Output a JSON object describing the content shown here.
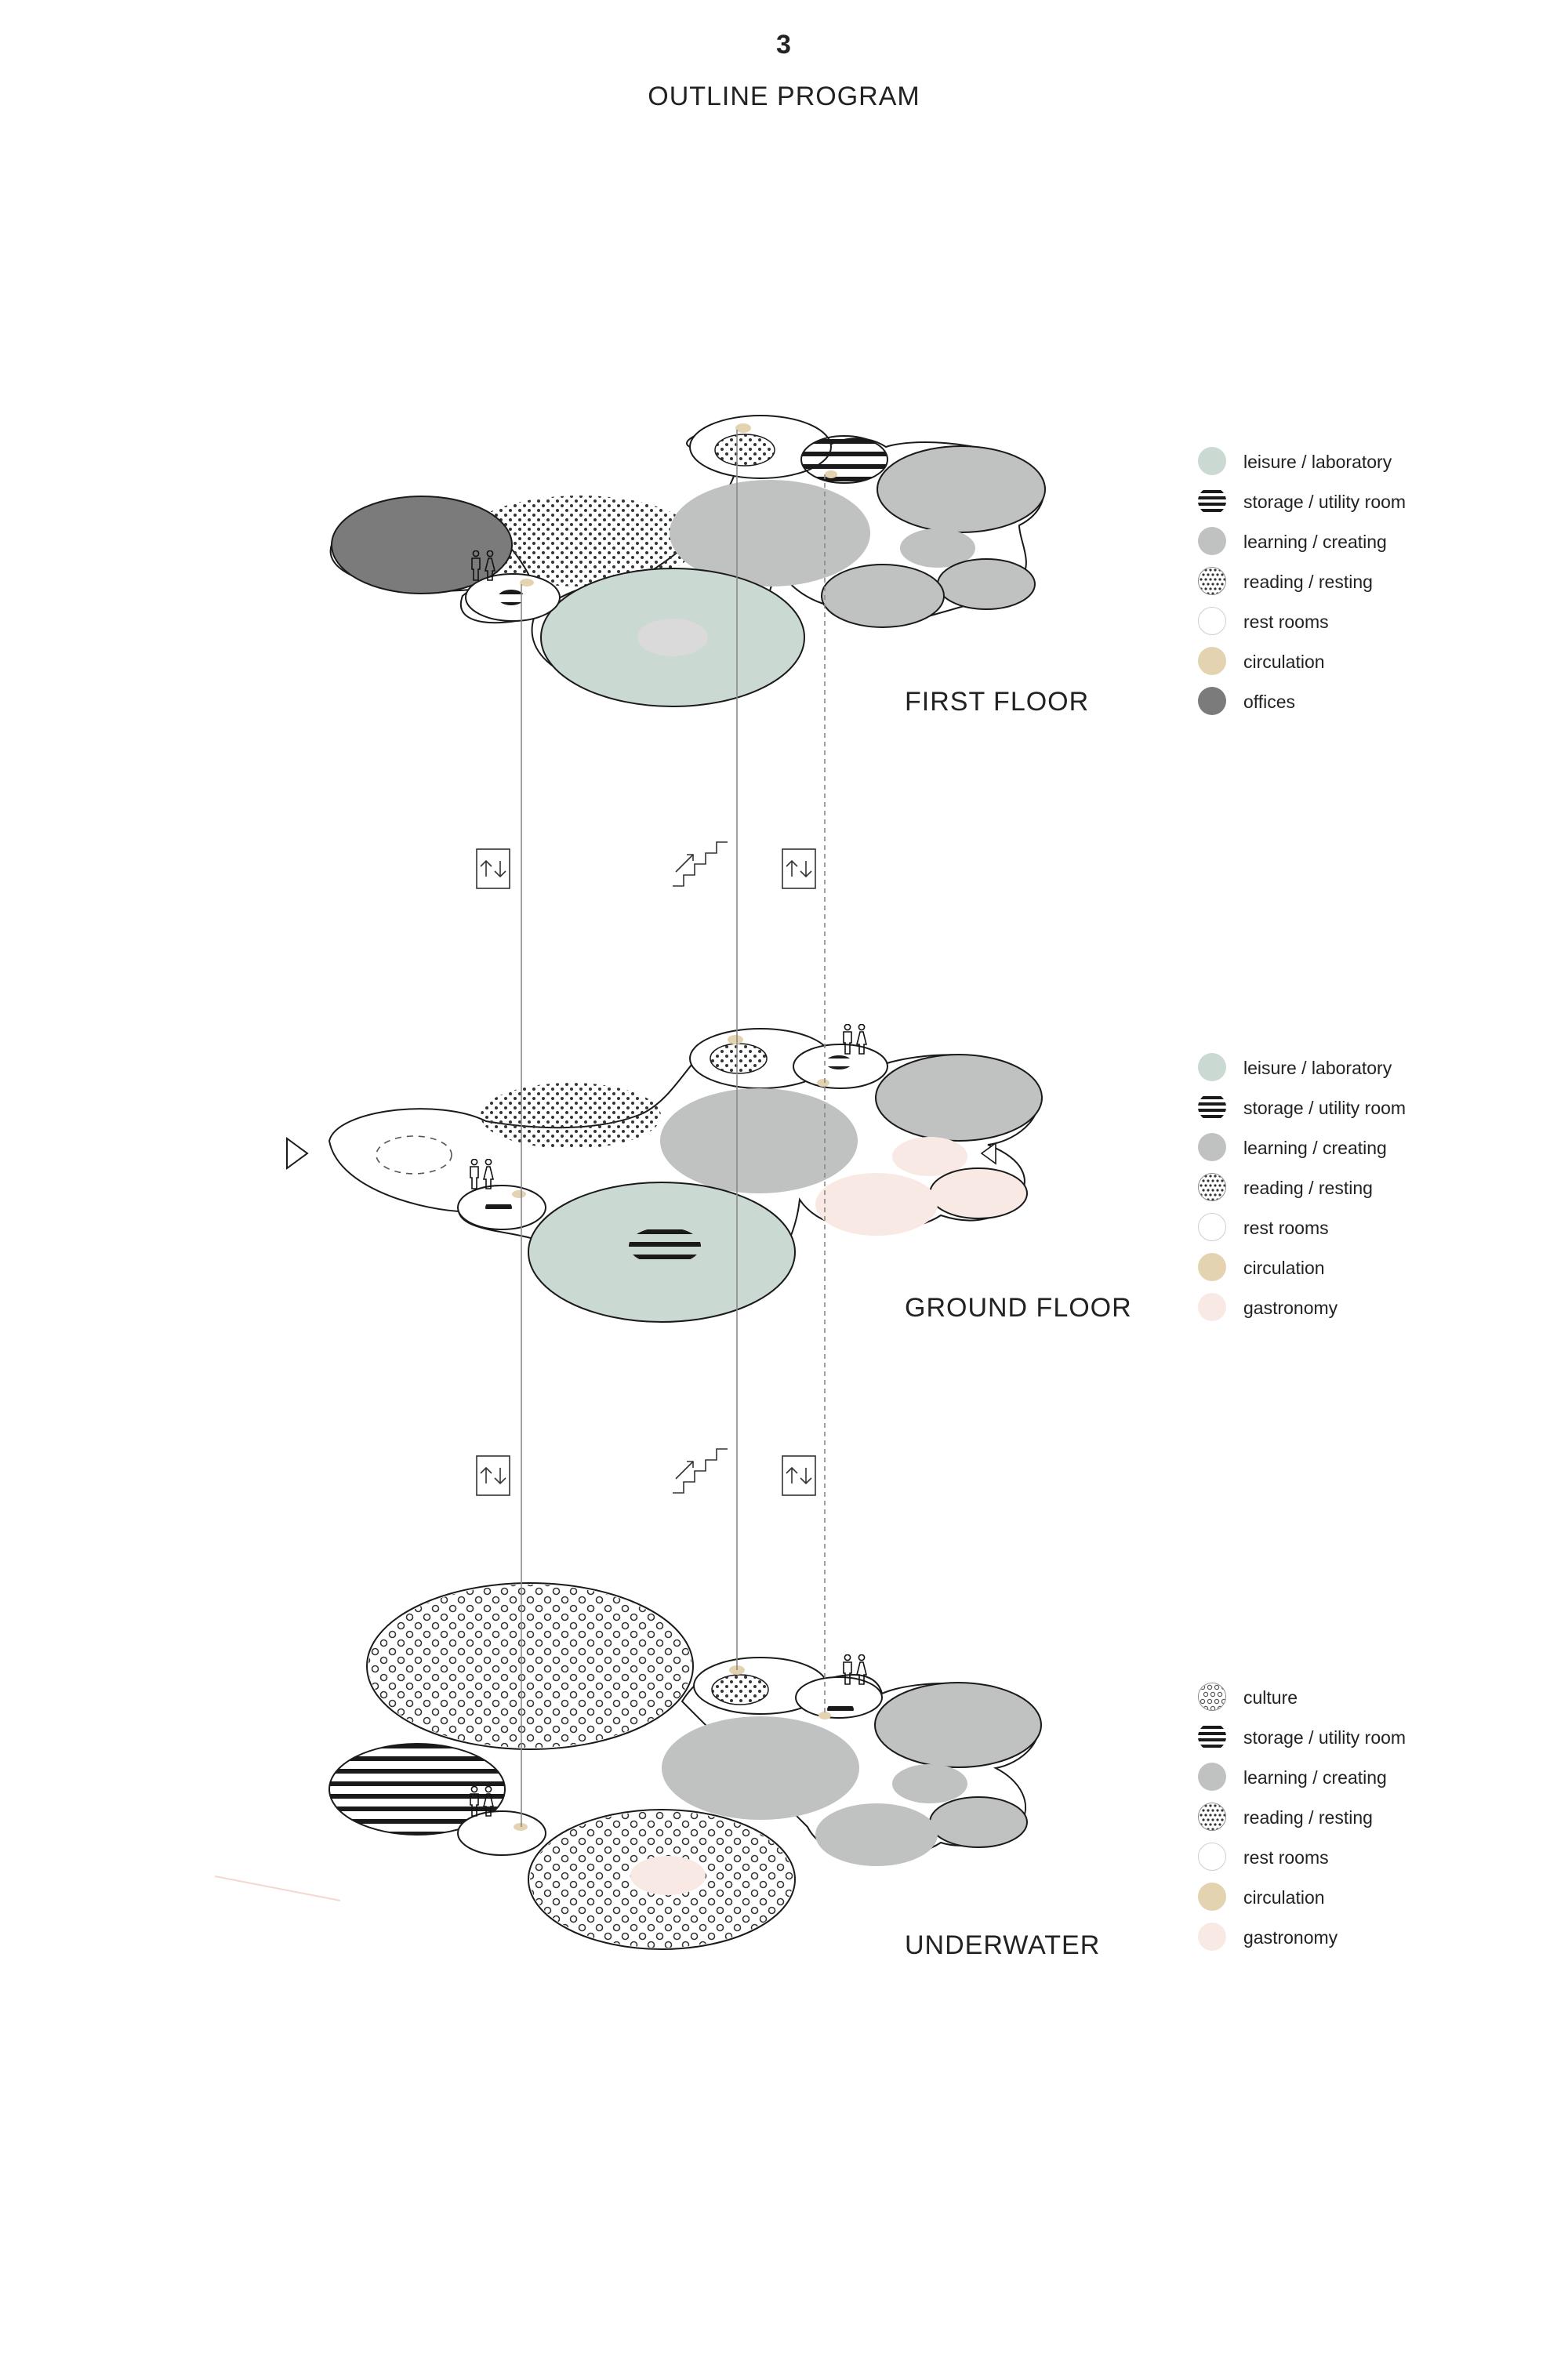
{
  "page_number": "3",
  "title": "OUTLINE PROGRAM",
  "floors": [
    {
      "label": "FIRST FLOOR",
      "legend": [
        {
          "label": "leisure / laboratory",
          "swatch": "leisure"
        },
        {
          "label": "storage / utility room",
          "swatch": "storage"
        },
        {
          "label": "learning / creating",
          "swatch": "learning"
        },
        {
          "label": "reading / resting",
          "swatch": "reading"
        },
        {
          "label": "rest rooms",
          "swatch": "rest"
        },
        {
          "label": "circulation",
          "swatch": "circulation"
        },
        {
          "label": "offices",
          "swatch": "offices"
        }
      ]
    },
    {
      "label": "GROUND FLOOR",
      "legend": [
        {
          "label": "leisure / laboratory",
          "swatch": "leisure"
        },
        {
          "label": "storage / utility room",
          "swatch": "storage"
        },
        {
          "label": "learning / creating",
          "swatch": "learning"
        },
        {
          "label": "reading / resting",
          "swatch": "reading"
        },
        {
          "label": "rest rooms",
          "swatch": "rest"
        },
        {
          "label": "circulation",
          "swatch": "circulation"
        },
        {
          "label": "gastronomy",
          "swatch": "gastronomy"
        }
      ]
    },
    {
      "label": "UNDERWATER",
      "legend": [
        {
          "label": "culture",
          "swatch": "culture"
        },
        {
          "label": "storage / utility room",
          "swatch": "storage"
        },
        {
          "label": "learning / creating",
          "swatch": "learning"
        },
        {
          "label": "reading / resting",
          "swatch": "reading"
        },
        {
          "label": "rest rooms",
          "swatch": "rest"
        },
        {
          "label": "circulation",
          "swatch": "circulation"
        },
        {
          "label": "gastronomy",
          "swatch": "gastronomy"
        }
      ]
    }
  ],
  "colors": {
    "leisure": "#cad9d2",
    "learning": "#c0c1c1",
    "offices": "#7b7b7b",
    "circulation": "#e4d3b1",
    "gastronomy": "#f9e9e4",
    "inner_disc": "#dadada",
    "outline": "#1a1a1a"
  },
  "icons": [
    "elevator-icon",
    "stairs-icon",
    "restroom-people-icon",
    "entrance-arrow-icon"
  ]
}
